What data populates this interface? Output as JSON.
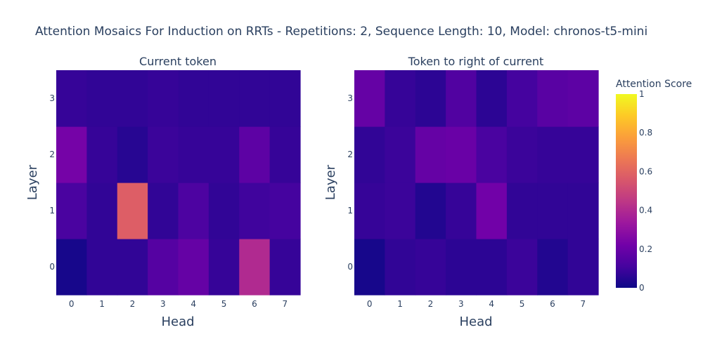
{
  "chart_data": {
    "type": "heatmap",
    "title": "Attention Mosaics For Induction on RRTs - Repetitions: 2, Sequence Length: 10, Model: chronos-t5-mini",
    "colorbar": {
      "title": "Attention Score",
      "range": [
        0,
        1
      ],
      "ticks": [
        "0",
        "0.2",
        "0.4",
        "0.6",
        "0.8",
        "1"
      ],
      "colorscale": [
        "#0d0887",
        "#46039f",
        "#7201a8",
        "#9c179e",
        "#bd3786",
        "#d8576b",
        "#ed7953",
        "#fb9f3a",
        "#fdca26",
        "#f0f921"
      ]
    },
    "panels": [
      {
        "subtitle": "Current token",
        "xlabel": "Head",
        "ylabel": "Layer",
        "x": [
          "0",
          "1",
          "2",
          "3",
          "4",
          "5",
          "6",
          "7"
        ],
        "y": [
          "0",
          "1",
          "2",
          "3"
        ],
        "z": [
          [
            0.02,
            0.07,
            0.07,
            0.15,
            0.19,
            0.08,
            0.4,
            0.08
          ],
          [
            0.12,
            0.07,
            0.58,
            0.07,
            0.13,
            0.07,
            0.1,
            0.11
          ],
          [
            0.23,
            0.08,
            0.05,
            0.09,
            0.08,
            0.08,
            0.17,
            0.08
          ],
          [
            0.08,
            0.07,
            0.07,
            0.08,
            0.07,
            0.07,
            0.07,
            0.07
          ]
        ]
      },
      {
        "subtitle": "Token to right of current",
        "xlabel": "Head",
        "ylabel": "Layer",
        "x": [
          "0",
          "1",
          "2",
          "3",
          "4",
          "5",
          "6",
          "7"
        ],
        "y": [
          "0",
          "1",
          "2",
          "3"
        ],
        "z": [
          [
            0.02,
            0.07,
            0.08,
            0.06,
            0.06,
            0.09,
            0.04,
            0.07
          ],
          [
            0.08,
            0.09,
            0.04,
            0.08,
            0.22,
            0.07,
            0.07,
            0.07
          ],
          [
            0.07,
            0.09,
            0.19,
            0.2,
            0.12,
            0.09,
            0.08,
            0.08
          ],
          [
            0.19,
            0.08,
            0.06,
            0.14,
            0.06,
            0.11,
            0.16,
            0.17
          ]
        ]
      }
    ]
  }
}
